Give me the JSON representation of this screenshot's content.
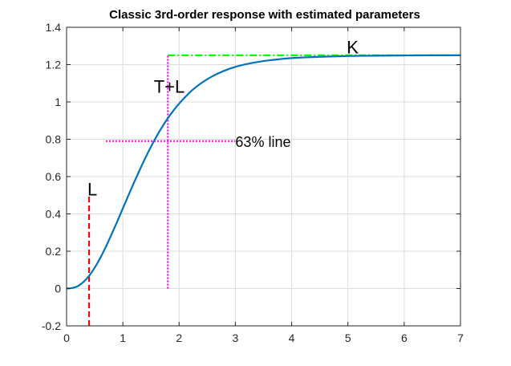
{
  "chart_data": {
    "type": "line",
    "title": "Classic 3rd-order response with estimated parameters",
    "xlabel": "",
    "ylabel": "",
    "xlim": [
      0,
      7
    ],
    "ylim": [
      -0.2,
      1.4
    ],
    "grid": true,
    "x_ticks": [
      "0",
      "1",
      "2",
      "3",
      "4",
      "5",
      "6",
      "7"
    ],
    "y_ticks": [
      "-0.2",
      "0",
      "0.2",
      "0.4",
      "0.6",
      "0.8",
      "1",
      "1.2",
      "1.4"
    ],
    "x_tick_values": [
      0,
      1,
      2,
      3,
      4,
      5,
      6,
      7
    ],
    "y_tick_values": [
      -0.2,
      0,
      0.2,
      0.4,
      0.6,
      0.8,
      1,
      1.2,
      1.4
    ],
    "series": [
      {
        "color": "#0072BD",
        "x": [
          0,
          0.1,
          0.2,
          0.3,
          0.4,
          0.5,
          0.6,
          0.7,
          0.8,
          0.9,
          1.0,
          1.1,
          1.2,
          1.3,
          1.4,
          1.5,
          1.6,
          1.7,
          1.8,
          1.9,
          2.0,
          2.2,
          2.4,
          2.6,
          2.8,
          3.0,
          3.25,
          3.5,
          3.75,
          4.0,
          4.5,
          5.0,
          5.5,
          6.0,
          6.5,
          7.0
        ],
        "y": [
          0,
          0.003,
          0.013,
          0.035,
          0.068,
          0.112,
          0.165,
          0.225,
          0.291,
          0.359,
          0.43,
          0.5,
          0.569,
          0.636,
          0.7,
          0.76,
          0.816,
          0.867,
          0.913,
          0.954,
          0.991,
          1.054,
          1.102,
          1.139,
          1.167,
          1.188,
          1.206,
          1.219,
          1.228,
          1.235,
          1.242,
          1.246,
          1.248,
          1.249,
          1.25,
          1.25
        ]
      }
    ],
    "reference_lines": [
      {
        "kind": "vertical",
        "x": 0.4,
        "y_from": -0.2,
        "y_to": 0.5,
        "color": "#FF0000",
        "style": "dashed"
      },
      {
        "kind": "horizontal",
        "y": 1.25,
        "x_from": 1.8,
        "x_to": 7.0,
        "color": "#00FF00",
        "style": "dashdot"
      },
      {
        "kind": "vertical",
        "x": 1.8,
        "y_from": 0,
        "y_to": 1.25,
        "color": "#FF00FF",
        "style": "dotted"
      },
      {
        "kind": "horizontal",
        "y": 0.79,
        "x_from": 0.7,
        "x_to": 3.0,
        "color": "#FF00FF",
        "style": "dotted"
      }
    ],
    "annotations": [
      {
        "text": "L",
        "x": 0.37,
        "y": 0.5
      },
      {
        "text": "T+L",
        "x": 1.55,
        "y": 1.05
      },
      {
        "text": "63% line",
        "x": 3.0,
        "y": 0.76
      },
      {
        "text": "K",
        "x": 4.98,
        "y": 1.26
      }
    ]
  }
}
